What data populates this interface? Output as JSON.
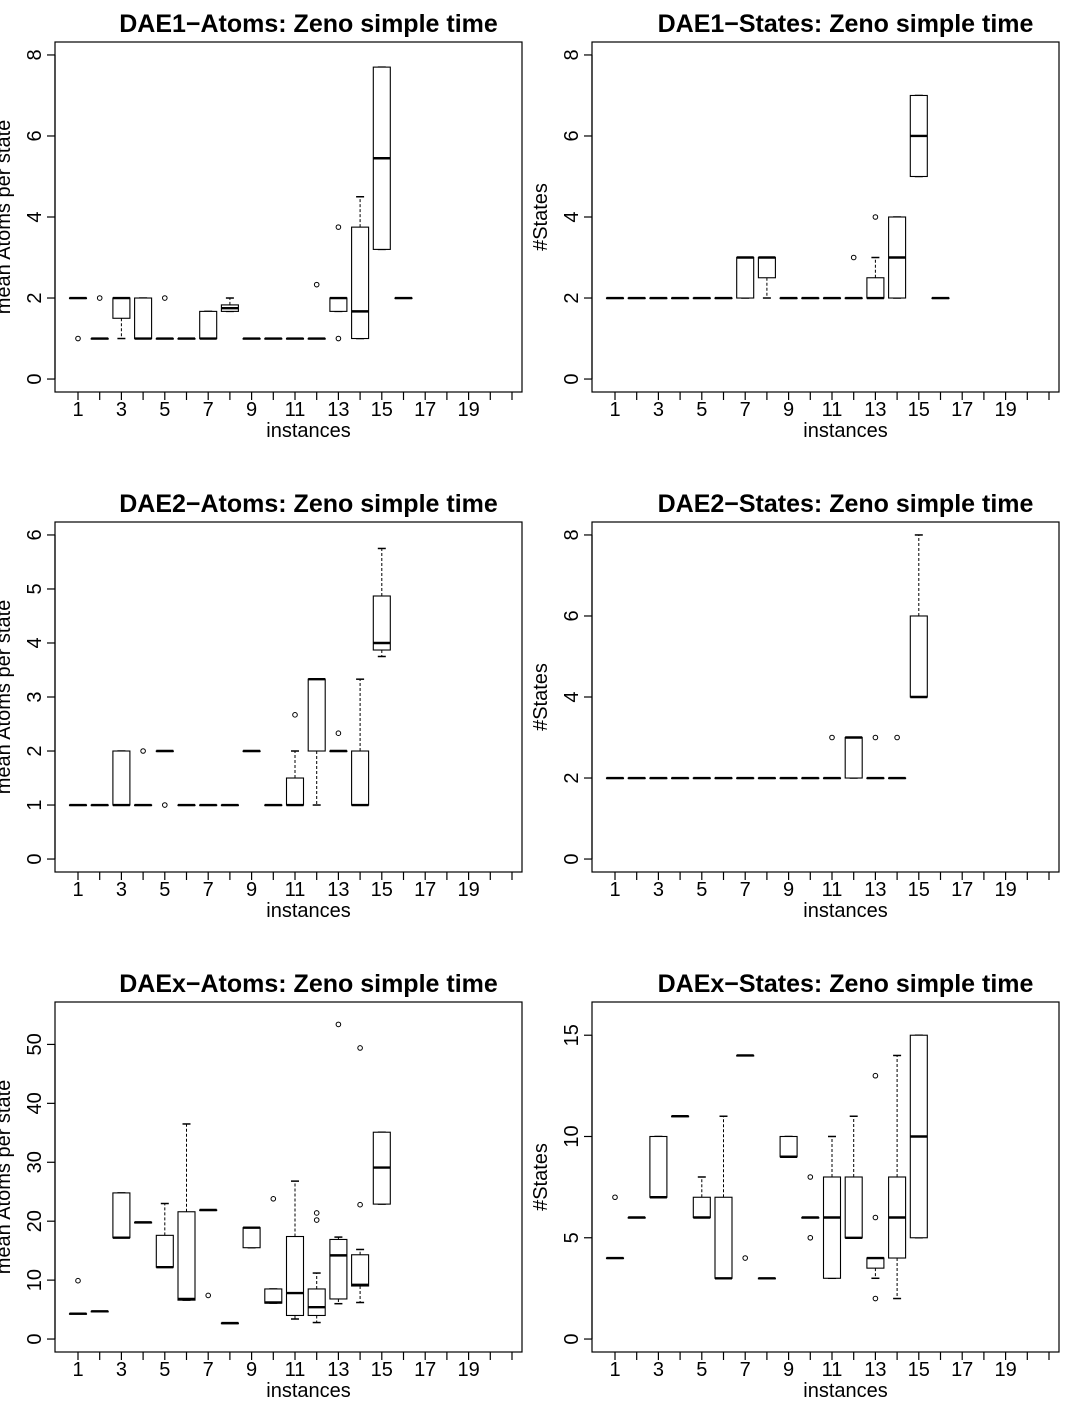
{
  "chart_data": [
    {
      "type": "boxplot",
      "title": "DAE1−Atoms: Zeno simple time",
      "xlabel": "instances",
      "ylabel": "mean Atoms per state",
      "ylim": [
        0,
        8
      ],
      "yticks": [
        0,
        2,
        4,
        6,
        8
      ],
      "xticks": [
        "1",
        "3",
        "5",
        "7",
        "9",
        "11",
        "13",
        "15",
        "17",
        "19"
      ],
      "grid": false,
      "boxes": [
        {
          "x": 1,
          "min": 2,
          "q1": 2,
          "median": 2,
          "q3": 2,
          "max": 2,
          "outliers": [
            1
          ]
        },
        {
          "x": 2,
          "min": 1,
          "q1": 1,
          "median": 1,
          "q3": 1,
          "max": 1,
          "outliers": [
            2
          ]
        },
        {
          "x": 3,
          "min": 1,
          "q1": 1.5,
          "median": 2,
          "q3": 2,
          "max": 2,
          "outliers": []
        },
        {
          "x": 4,
          "min": 1,
          "q1": 1,
          "median": 1,
          "q3": 2,
          "max": 2,
          "outliers": []
        },
        {
          "x": 5,
          "min": 1,
          "q1": 1,
          "median": 1,
          "q3": 1,
          "max": 1,
          "outliers": [
            2
          ]
        },
        {
          "x": 6,
          "min": 1,
          "q1": 1,
          "median": 1,
          "q3": 1,
          "max": 1,
          "outliers": []
        },
        {
          "x": 7,
          "min": 1,
          "q1": 1,
          "median": 1,
          "q3": 1.67,
          "max": 1.67,
          "outliers": []
        },
        {
          "x": 8,
          "min": 1.67,
          "q1": 1.67,
          "median": 1.75,
          "q3": 1.83,
          "max": 2,
          "outliers": []
        },
        {
          "x": 9,
          "min": 1,
          "q1": 1,
          "median": 1,
          "q3": 1,
          "max": 1,
          "outliers": []
        },
        {
          "x": 10,
          "min": 1,
          "q1": 1,
          "median": 1,
          "q3": 1,
          "max": 1,
          "outliers": []
        },
        {
          "x": 11,
          "min": 1,
          "q1": 1,
          "median": 1,
          "q3": 1,
          "max": 1,
          "outliers": []
        },
        {
          "x": 12,
          "min": 1,
          "q1": 1,
          "median": 1,
          "q3": 1,
          "max": 1,
          "outliers": [
            2.33
          ]
        },
        {
          "x": 13,
          "min": 1.67,
          "q1": 1.67,
          "median": 2,
          "q3": 2,
          "max": 2,
          "outliers": [
            1,
            3.75
          ]
        },
        {
          "x": 14,
          "min": 1,
          "q1": 1,
          "median": 1.67,
          "q3": 3.75,
          "max": 4.5,
          "outliers": []
        },
        {
          "x": 15,
          "min": 3.2,
          "q1": 3.2,
          "median": 5.45,
          "q3": 7.7,
          "max": 7.7,
          "outliers": []
        },
        {
          "x": 16,
          "min": 2,
          "q1": 2,
          "median": 2,
          "q3": 2,
          "max": 2,
          "outliers": []
        }
      ]
    },
    {
      "type": "boxplot",
      "title": "DAE1−States: Zeno simple time",
      "xlabel": "instances",
      "ylabel": "#States",
      "ylim": [
        0,
        8
      ],
      "yticks": [
        0,
        2,
        4,
        6,
        8
      ],
      "xticks": [
        "1",
        "3",
        "5",
        "7",
        "9",
        "11",
        "13",
        "15",
        "17",
        "19"
      ],
      "grid": false,
      "boxes": [
        {
          "x": 1,
          "min": 2,
          "q1": 2,
          "median": 2,
          "q3": 2,
          "max": 2,
          "outliers": []
        },
        {
          "x": 2,
          "min": 2,
          "q1": 2,
          "median": 2,
          "q3": 2,
          "max": 2,
          "outliers": []
        },
        {
          "x": 3,
          "min": 2,
          "q1": 2,
          "median": 2,
          "q3": 2,
          "max": 2,
          "outliers": []
        },
        {
          "x": 4,
          "min": 2,
          "q1": 2,
          "median": 2,
          "q3": 2,
          "max": 2,
          "outliers": []
        },
        {
          "x": 5,
          "min": 2,
          "q1": 2,
          "median": 2,
          "q3": 2,
          "max": 2,
          "outliers": []
        },
        {
          "x": 6,
          "min": 2,
          "q1": 2,
          "median": 2,
          "q3": 2,
          "max": 2,
          "outliers": []
        },
        {
          "x": 7,
          "min": 2,
          "q1": 2,
          "median": 3,
          "q3": 3,
          "max": 3,
          "outliers": []
        },
        {
          "x": 8,
          "min": 2,
          "q1": 2.5,
          "median": 3,
          "q3": 3,
          "max": 3,
          "outliers": []
        },
        {
          "x": 9,
          "min": 2,
          "q1": 2,
          "median": 2,
          "q3": 2,
          "max": 2,
          "outliers": []
        },
        {
          "x": 10,
          "min": 2,
          "q1": 2,
          "median": 2,
          "q3": 2,
          "max": 2,
          "outliers": []
        },
        {
          "x": 11,
          "min": 2,
          "q1": 2,
          "median": 2,
          "q3": 2,
          "max": 2,
          "outliers": []
        },
        {
          "x": 12,
          "min": 2,
          "q1": 2,
          "median": 2,
          "q3": 2,
          "max": 2,
          "outliers": [
            3
          ]
        },
        {
          "x": 13,
          "min": 2,
          "q1": 2,
          "median": 2,
          "q3": 2.5,
          "max": 3,
          "outliers": [
            4
          ]
        },
        {
          "x": 14,
          "min": 2,
          "q1": 2,
          "median": 3,
          "q3": 4,
          "max": 4,
          "outliers": []
        },
        {
          "x": 15,
          "min": 5,
          "q1": 5,
          "median": 6,
          "q3": 7,
          "max": 7,
          "outliers": []
        },
        {
          "x": 16,
          "min": 2,
          "q1": 2,
          "median": 2,
          "q3": 2,
          "max": 2,
          "outliers": []
        }
      ]
    },
    {
      "type": "boxplot",
      "title": "DAE2−Atoms: Zeno simple time",
      "xlabel": "instances",
      "ylabel": "mean Atoms per state",
      "ylim": [
        0,
        6
      ],
      "yticks": [
        0,
        1,
        2,
        3,
        4,
        5,
        6
      ],
      "xticks": [
        "1",
        "3",
        "5",
        "7",
        "9",
        "11",
        "13",
        "15",
        "17",
        "19"
      ],
      "grid": false,
      "boxes": [
        {
          "x": 1,
          "min": 1,
          "q1": 1,
          "median": 1,
          "q3": 1,
          "max": 1,
          "outliers": []
        },
        {
          "x": 2,
          "min": 1,
          "q1": 1,
          "median": 1,
          "q3": 1,
          "max": 1,
          "outliers": []
        },
        {
          "x": 3,
          "min": 1,
          "q1": 1,
          "median": 1,
          "q3": 2,
          "max": 2,
          "outliers": []
        },
        {
          "x": 4,
          "min": 1,
          "q1": 1,
          "median": 1,
          "q3": 1,
          "max": 1,
          "outliers": [
            2
          ]
        },
        {
          "x": 5,
          "min": 2,
          "q1": 2,
          "median": 2,
          "q3": 2,
          "max": 2,
          "outliers": [
            1
          ]
        },
        {
          "x": 6,
          "min": 1,
          "q1": 1,
          "median": 1,
          "q3": 1,
          "max": 1,
          "outliers": []
        },
        {
          "x": 7,
          "min": 1,
          "q1": 1,
          "median": 1,
          "q3": 1,
          "max": 1,
          "outliers": []
        },
        {
          "x": 8,
          "min": 1,
          "q1": 1,
          "median": 1,
          "q3": 1,
          "max": 1,
          "outliers": []
        },
        {
          "x": 9,
          "min": 2,
          "q1": 2,
          "median": 2,
          "q3": 2,
          "max": 2,
          "outliers": []
        },
        {
          "x": 10,
          "min": 1,
          "q1": 1,
          "median": 1,
          "q3": 1,
          "max": 1,
          "outliers": []
        },
        {
          "x": 11,
          "min": 1,
          "q1": 1,
          "median": 1,
          "q3": 1.5,
          "max": 2,
          "outliers": [
            2.67
          ]
        },
        {
          "x": 12,
          "min": 1,
          "q1": 2,
          "median": 3.33,
          "q3": 3.33,
          "max": 3.33,
          "outliers": []
        },
        {
          "x": 13,
          "min": 2,
          "q1": 2,
          "median": 2,
          "q3": 2,
          "max": 2,
          "outliers": [
            2.33
          ]
        },
        {
          "x": 14,
          "min": 1,
          "q1": 1,
          "median": 1,
          "q3": 2,
          "max": 3.33,
          "outliers": []
        },
        {
          "x": 15,
          "min": 3.75,
          "q1": 3.87,
          "median": 4,
          "q3": 4.87,
          "max": 5.75,
          "outliers": []
        }
      ]
    },
    {
      "type": "boxplot",
      "title": "DAE2−States: Zeno simple time",
      "xlabel": "instances",
      "ylabel": "#States",
      "ylim": [
        0,
        8
      ],
      "yticks": [
        0,
        2,
        4,
        6,
        8
      ],
      "xticks": [
        "1",
        "3",
        "5",
        "7",
        "9",
        "11",
        "13",
        "15",
        "17",
        "19"
      ],
      "grid": false,
      "boxes": [
        {
          "x": 1,
          "min": 2,
          "q1": 2,
          "median": 2,
          "q3": 2,
          "max": 2,
          "outliers": []
        },
        {
          "x": 2,
          "min": 2,
          "q1": 2,
          "median": 2,
          "q3": 2,
          "max": 2,
          "outliers": []
        },
        {
          "x": 3,
          "min": 2,
          "q1": 2,
          "median": 2,
          "q3": 2,
          "max": 2,
          "outliers": []
        },
        {
          "x": 4,
          "min": 2,
          "q1": 2,
          "median": 2,
          "q3": 2,
          "max": 2,
          "outliers": []
        },
        {
          "x": 5,
          "min": 2,
          "q1": 2,
          "median": 2,
          "q3": 2,
          "max": 2,
          "outliers": []
        },
        {
          "x": 6,
          "min": 2,
          "q1": 2,
          "median": 2,
          "q3": 2,
          "max": 2,
          "outliers": []
        },
        {
          "x": 7,
          "min": 2,
          "q1": 2,
          "median": 2,
          "q3": 2,
          "max": 2,
          "outliers": []
        },
        {
          "x": 8,
          "min": 2,
          "q1": 2,
          "median": 2,
          "q3": 2,
          "max": 2,
          "outliers": []
        },
        {
          "x": 9,
          "min": 2,
          "q1": 2,
          "median": 2,
          "q3": 2,
          "max": 2,
          "outliers": []
        },
        {
          "x": 10,
          "min": 2,
          "q1": 2,
          "median": 2,
          "q3": 2,
          "max": 2,
          "outliers": []
        },
        {
          "x": 11,
          "min": 2,
          "q1": 2,
          "median": 2,
          "q3": 2,
          "max": 2,
          "outliers": [
            3
          ]
        },
        {
          "x": 12,
          "min": 2,
          "q1": 2,
          "median": 3,
          "q3": 3,
          "max": 3,
          "outliers": []
        },
        {
          "x": 13,
          "min": 2,
          "q1": 2,
          "median": 2,
          "q3": 2,
          "max": 2,
          "outliers": [
            3
          ]
        },
        {
          "x": 14,
          "min": 2,
          "q1": 2,
          "median": 2,
          "q3": 2,
          "max": 2,
          "outliers": [
            3
          ]
        },
        {
          "x": 15,
          "min": 4,
          "q1": 4,
          "median": 4,
          "q3": 6,
          "max": 8,
          "outliers": []
        }
      ]
    },
    {
      "type": "boxplot",
      "title": "DAEx−Atoms: Zeno simple time",
      "xlabel": "instances",
      "ylabel": "mean Atoms per state",
      "ylim": [
        0,
        55
      ],
      "yticks": [
        0,
        10,
        20,
        30,
        40,
        50
      ],
      "xticks": [
        "1",
        "3",
        "5",
        "7",
        "9",
        "11",
        "13",
        "15",
        "17",
        "19"
      ],
      "grid": false,
      "boxes": [
        {
          "x": 1,
          "min": 4.3,
          "q1": 4.3,
          "median": 4.3,
          "q3": 4.3,
          "max": 4.3,
          "outliers": [
            9.9
          ]
        },
        {
          "x": 2,
          "min": 4.7,
          "q1": 4.7,
          "median": 4.7,
          "q3": 4.7,
          "max": 4.7,
          "outliers": []
        },
        {
          "x": 3,
          "min": 17.2,
          "q1": 17.2,
          "median": 17.2,
          "q3": 24.8,
          "max": 24.8,
          "outliers": []
        },
        {
          "x": 4,
          "min": 19.8,
          "q1": 19.8,
          "median": 19.8,
          "q3": 19.8,
          "max": 19.8,
          "outliers": []
        },
        {
          "x": 5,
          "min": 12.2,
          "q1": 12.2,
          "median": 12.2,
          "q3": 17.6,
          "max": 23,
          "outliers": []
        },
        {
          "x": 6,
          "min": 6.6,
          "q1": 6.6,
          "median": 6.8,
          "q3": 21.6,
          "max": 36.5,
          "outliers": []
        },
        {
          "x": 7,
          "min": 21.9,
          "q1": 21.9,
          "median": 21.9,
          "q3": 21.9,
          "max": 21.9,
          "outliers": [
            7.4
          ]
        },
        {
          "x": 8,
          "min": 2.7,
          "q1": 2.7,
          "median": 2.7,
          "q3": 2.7,
          "max": 2.7,
          "outliers": []
        },
        {
          "x": 9,
          "min": 15.5,
          "q1": 15.5,
          "median": 18.9,
          "q3": 18.9,
          "max": 18.9,
          "outliers": []
        },
        {
          "x": 10,
          "min": 6.1,
          "q1": 6.1,
          "median": 6.2,
          "q3": 8.5,
          "max": 8.5,
          "outliers": [
            23.8
          ]
        },
        {
          "x": 11,
          "min": 3.4,
          "q1": 4,
          "median": 7.8,
          "q3": 17.4,
          "max": 26.8,
          "outliers": []
        },
        {
          "x": 12,
          "min": 2.8,
          "q1": 4,
          "median": 5.4,
          "q3": 8.5,
          "max": 11.2,
          "outliers": [
            20.2,
            21.4
          ]
        },
        {
          "x": 13,
          "min": 6,
          "q1": 6.8,
          "median": 14.2,
          "q3": 16.9,
          "max": 17.3,
          "outliers": [
            53.4
          ]
        },
        {
          "x": 14,
          "min": 6.2,
          "q1": 9,
          "median": 9.2,
          "q3": 14.3,
          "max": 15.2,
          "outliers": [
            22.8,
            49.4
          ]
        },
        {
          "x": 15,
          "min": 22.9,
          "q1": 22.9,
          "median": 29.1,
          "q3": 35.1,
          "max": 35.1,
          "outliers": []
        }
      ]
    },
    {
      "type": "boxplot",
      "title": "DAEx−States: Zeno simple time",
      "xlabel": "instances",
      "ylabel": "#States",
      "ylim": [
        0,
        16
      ],
      "yticks": [
        0,
        5,
        10,
        15
      ],
      "xticks": [
        "1",
        "3",
        "5",
        "7",
        "9",
        "11",
        "13",
        "15",
        "17",
        "19"
      ],
      "grid": false,
      "boxes": [
        {
          "x": 1,
          "min": 4,
          "q1": 4,
          "median": 4,
          "q3": 4,
          "max": 4,
          "outliers": [
            7
          ]
        },
        {
          "x": 2,
          "min": 6,
          "q1": 6,
          "median": 6,
          "q3": 6,
          "max": 6,
          "outliers": []
        },
        {
          "x": 3,
          "min": 7,
          "q1": 7,
          "median": 7,
          "q3": 10,
          "max": 10,
          "outliers": []
        },
        {
          "x": 4,
          "min": 11,
          "q1": 11,
          "median": 11,
          "q3": 11,
          "max": 11,
          "outliers": []
        },
        {
          "x": 5,
          "min": 6,
          "q1": 6,
          "median": 6,
          "q3": 7,
          "max": 8,
          "outliers": []
        },
        {
          "x": 6,
          "min": 3,
          "q1": 3,
          "median": 3,
          "q3": 7,
          "max": 11,
          "outliers": []
        },
        {
          "x": 7,
          "min": 14,
          "q1": 14,
          "median": 14,
          "q3": 14,
          "max": 14,
          "outliers": [
            4
          ]
        },
        {
          "x": 8,
          "min": 3,
          "q1": 3,
          "median": 3,
          "q3": 3,
          "max": 3,
          "outliers": []
        },
        {
          "x": 9,
          "min": 9,
          "q1": 9,
          "median": 9,
          "q3": 10,
          "max": 10,
          "outliers": []
        },
        {
          "x": 10,
          "min": 6,
          "q1": 6,
          "median": 6,
          "q3": 6,
          "max": 6,
          "outliers": [
            5,
            8
          ]
        },
        {
          "x": 11,
          "min": 3,
          "q1": 3,
          "median": 6,
          "q3": 8,
          "max": 10,
          "outliers": []
        },
        {
          "x": 12,
          "min": 5,
          "q1": 5,
          "median": 5,
          "q3": 8,
          "max": 11,
          "outliers": []
        },
        {
          "x": 13,
          "min": 3,
          "q1": 3.5,
          "median": 4,
          "q3": 4,
          "max": 4,
          "outliers": [
            2,
            6,
            13
          ]
        },
        {
          "x": 14,
          "min": 2,
          "q1": 4,
          "median": 6,
          "q3": 8,
          "max": 14,
          "outliers": []
        },
        {
          "x": 15,
          "min": 5,
          "q1": 5,
          "median": 10,
          "q3": 15,
          "max": 15,
          "outliers": []
        }
      ]
    }
  ]
}
